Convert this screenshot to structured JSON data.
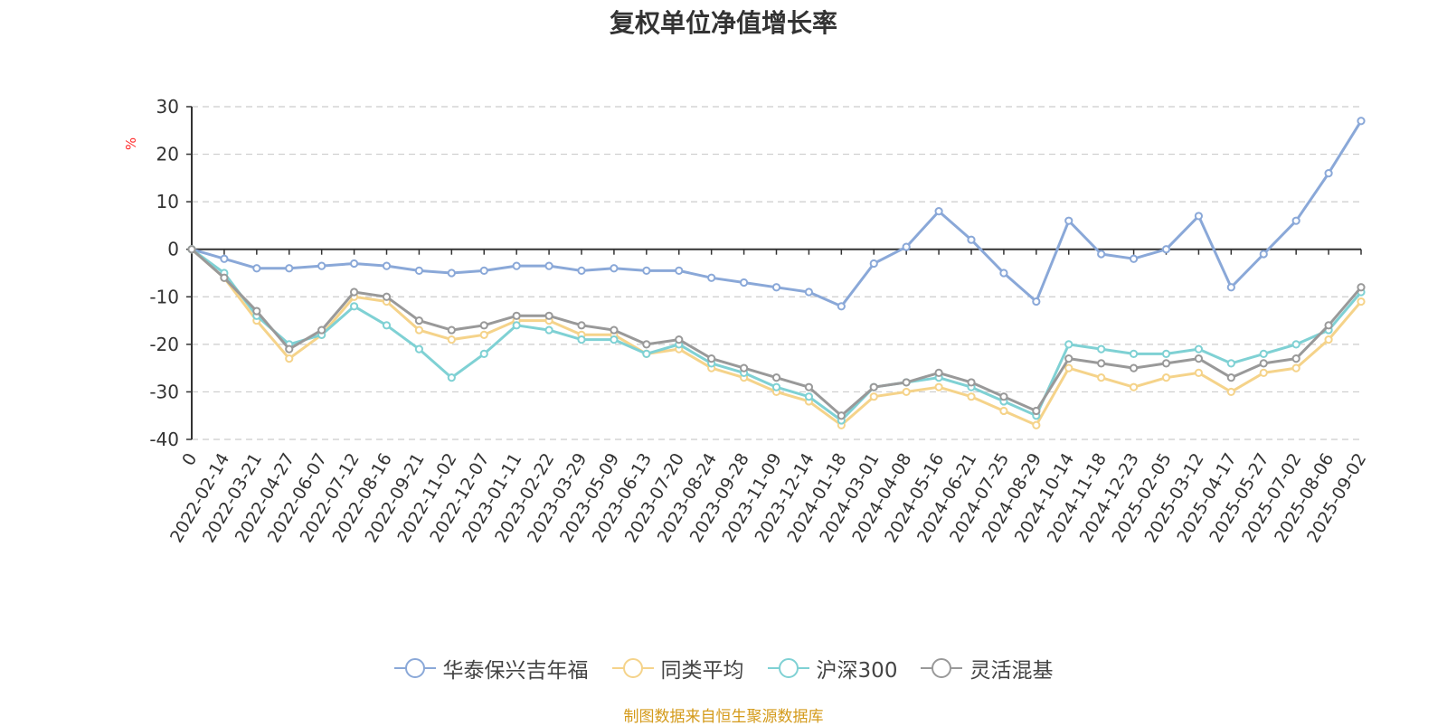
{
  "chart_data": {
    "type": "line",
    "title": "复权单位净值增长率",
    "ylabel": "%",
    "xlabel": "",
    "ylim": [
      -40,
      30
    ],
    "yticks": [
      30,
      20,
      10,
      0,
      -10,
      -20,
      -30,
      -40
    ],
    "grid": true,
    "legend_position": "bottom-center",
    "x": [
      "0",
      "2022-02-14",
      "2022-03-21",
      "2022-04-27",
      "2022-06-07",
      "2022-07-12",
      "2022-08-16",
      "2022-09-21",
      "2022-11-02",
      "2022-12-07",
      "2023-01-11",
      "2023-02-22",
      "2023-03-29",
      "2023-05-09",
      "2023-06-13",
      "2023-07-20",
      "2023-08-24",
      "2023-09-28",
      "2023-11-09",
      "2023-12-14",
      "2024-01-18",
      "2024-03-01",
      "2024-04-08",
      "2024-05-16",
      "2024-06-21",
      "2024-07-25",
      "2024-08-29",
      "2024-10-14",
      "2024-11-18",
      "2024-12-23",
      "2025-02-05",
      "2025-03-12",
      "2025-04-17",
      "2025-05-27",
      "2025-07-02",
      "2025-08-06",
      "2025-09-02"
    ],
    "series": [
      {
        "name": "华泰保兴吉年福",
        "color": "#8aa8d8",
        "values": [
          0,
          -2,
          -4,
          -4,
          -3.5,
          -3,
          -3.5,
          -4.5,
          -5,
          -4.5,
          -3.5,
          -3.5,
          -4.5,
          -4,
          -4.5,
          -4.5,
          -6,
          -7,
          -8,
          -9,
          -12,
          -3,
          0.5,
          8,
          2,
          -5,
          -11,
          6,
          -1,
          -2,
          0,
          7,
          -8,
          -1,
          6,
          16,
          27
        ]
      },
      {
        "name": "同类平均",
        "color": "#f5d38a",
        "values": [
          0,
          -6,
          -15,
          -23,
          -18,
          -10,
          -11,
          -17,
          -19,
          -18,
          -15,
          -15,
          -18,
          -18,
          -22,
          -21,
          -25,
          -27,
          -30,
          -32,
          -37,
          -31,
          -30,
          -29,
          -31,
          -34,
          -37,
          -25,
          -27,
          -29,
          -27,
          -26,
          -30,
          -26,
          -25,
          -19,
          -11
        ]
      },
      {
        "name": "沪深300",
        "color": "#7fd1d4",
        "values": [
          0,
          -5,
          -14,
          -20,
          -18,
          -12,
          -16,
          -21,
          -27,
          -22,
          -16,
          -17,
          -19,
          -19,
          -22,
          -20,
          -24,
          -26,
          -29,
          -31,
          -36,
          -29,
          -28,
          -27,
          -29,
          -32,
          -35,
          -20,
          -21,
          -22,
          -22,
          -21,
          -24,
          -22,
          -20,
          -17,
          -9
        ]
      },
      {
        "name": "灵活混基",
        "color": "#999999",
        "values": [
          0,
          -6,
          -13,
          -21,
          -17,
          -9,
          -10,
          -15,
          -17,
          -16,
          -14,
          -14,
          -16,
          -17,
          -20,
          -19,
          -23,
          -25,
          -27,
          -29,
          -35,
          -29,
          -28,
          -26,
          -28,
          -31,
          -34,
          -23,
          -24,
          -25,
          -24,
          -23,
          -27,
          -24,
          -23,
          -16,
          -8
        ]
      }
    ]
  },
  "footer": {
    "source": "制图数据来自恒生聚源数据库"
  }
}
